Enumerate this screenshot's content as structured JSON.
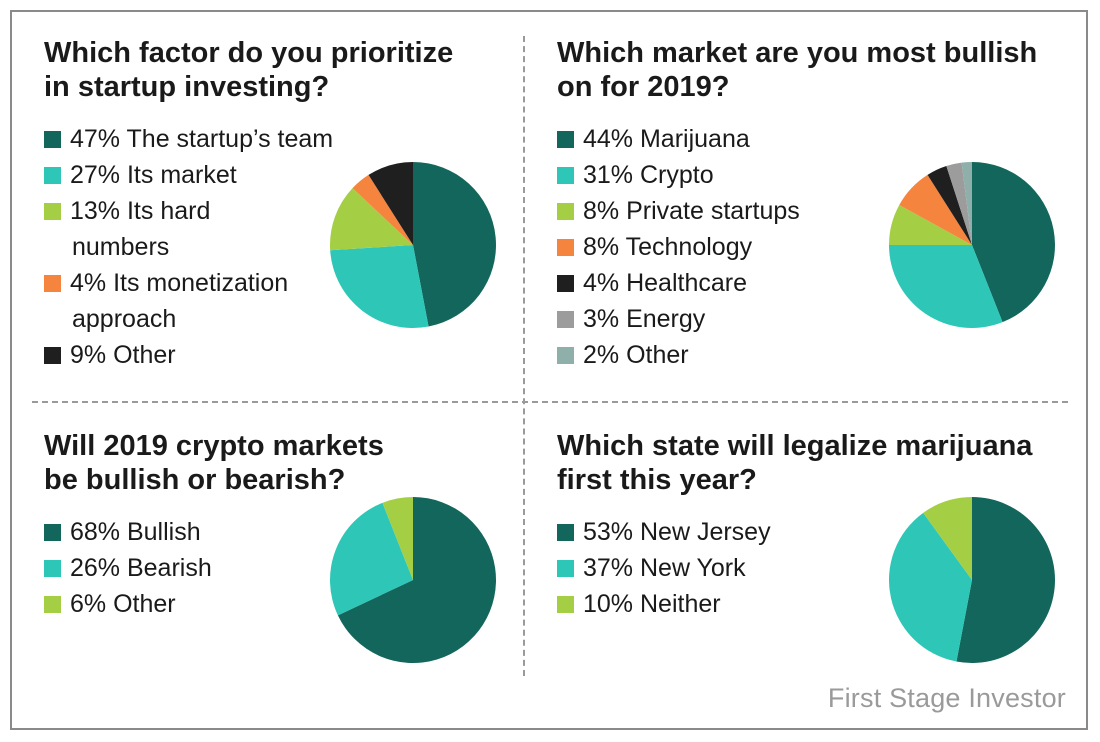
{
  "colors": {
    "dark_teal": "#13665b",
    "teal": "#2ec6b6",
    "lime": "#a4cf45",
    "orange": "#f5843f",
    "black": "#1f1f1f",
    "gray": "#9c9c9c",
    "gray_teal": "#8fb0aa"
  },
  "footer": "First Stage Investor",
  "chart_data": [
    {
      "type": "pie",
      "title": "Which factor do you prioritize in startup investing?",
      "legend_lines": [
        [
          "47% The startup’s team"
        ],
        [
          "27% Its market"
        ],
        [
          "13% Its hard",
          "numbers"
        ],
        [
          "4% Its monetization",
          "approach"
        ],
        [
          "9% Other"
        ]
      ],
      "categories": [
        "The startup’s team",
        "Its market",
        "Its hard numbers",
        "Its monetization approach",
        "Other"
      ],
      "values": [
        47,
        27,
        13,
        4,
        9
      ],
      "colors": [
        "#13665b",
        "#2ec6b6",
        "#a4cf45",
        "#f5843f",
        "#1f1f1f"
      ]
    },
    {
      "type": "pie",
      "title": "Which market are you most bullish on for 2019?",
      "legend_lines": [
        [
          "44% Marijuana"
        ],
        [
          "31% Crypto"
        ],
        [
          "8% Private startups"
        ],
        [
          "8% Technology"
        ],
        [
          "4% Healthcare"
        ],
        [
          "3% Energy"
        ],
        [
          "2% Other"
        ]
      ],
      "categories": [
        "Marijuana",
        "Crypto",
        "Private startups",
        "Technology",
        "Healthcare",
        "Energy",
        "Other"
      ],
      "values": [
        44,
        31,
        8,
        8,
        4,
        3,
        2
      ],
      "colors": [
        "#13665b",
        "#2ec6b6",
        "#a4cf45",
        "#f5843f",
        "#1f1f1f",
        "#9c9c9c",
        "#8fb0aa"
      ]
    },
    {
      "type": "pie",
      "title": "Will 2019 crypto markets be bullish or bearish?",
      "legend_lines": [
        [
          "68% Bullish"
        ],
        [
          "26% Bearish"
        ],
        [
          "6% Other"
        ]
      ],
      "categories": [
        "Bullish",
        "Bearish",
        "Other"
      ],
      "values": [
        68,
        26,
        6
      ],
      "colors": [
        "#13665b",
        "#2ec6b6",
        "#a4cf45"
      ]
    },
    {
      "type": "pie",
      "title": "Which state will legalize marijuana first this year?",
      "legend_lines": [
        [
          "53% New Jersey"
        ],
        [
          "37% New York"
        ],
        [
          "10% Neither"
        ]
      ],
      "categories": [
        "New Jersey",
        "New York",
        "Neither"
      ],
      "values": [
        53,
        37,
        10
      ],
      "colors": [
        "#13665b",
        "#2ec6b6",
        "#a4cf45"
      ]
    }
  ]
}
